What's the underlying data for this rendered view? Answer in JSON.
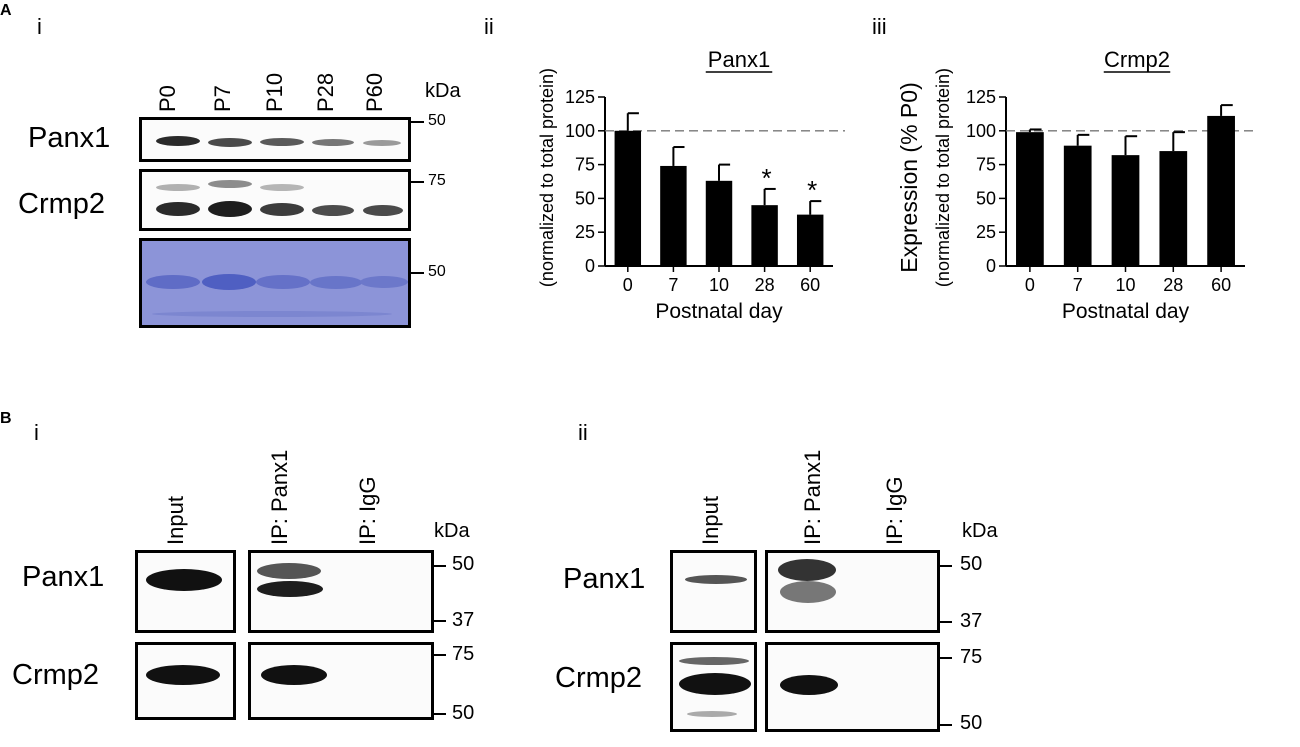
{
  "panel_a": {
    "label": "A",
    "i": {
      "label": "i",
      "lanes": [
        "P0",
        "P7",
        "P10",
        "P28",
        "P60"
      ],
      "kda": "kDa",
      "rows": [
        "Panx1",
        "Crmp2"
      ],
      "mw_markers": [
        "50",
        "75",
        "50"
      ]
    },
    "ii": {
      "label": "ii"
    },
    "iii": {
      "label": "iii"
    }
  },
  "panel_b": {
    "label": "B",
    "i": {
      "label": "i",
      "lanes": [
        "Input",
        "IP: Panx1",
        "IP: IgG"
      ],
      "kda": "kDa",
      "rows": [
        "Panx1",
        "Crmp2"
      ],
      "mw_markers": [
        "50",
        "37",
        "75",
        "50"
      ]
    },
    "ii": {
      "label": "ii",
      "lanes": [
        "Input",
        "IP: Panx1",
        "IP: IgG"
      ],
      "kda": "kDa",
      "rows": [
        "Panx1",
        "Crmp2"
      ],
      "mw_markers": [
        "50",
        "37",
        "75",
        "50"
      ]
    }
  },
  "chart_data": [
    {
      "type": "bar",
      "title": "Panx1",
      "categories": [
        "0",
        "7",
        "10",
        "28",
        "60"
      ],
      "values": [
        100,
        74,
        63,
        45,
        38
      ],
      "errors": [
        13,
        14,
        12,
        12,
        10
      ],
      "significance": [
        "",
        "",
        "",
        "*",
        "*"
      ],
      "xlabel": "Postnatal day",
      "ylabel": "(normalized to total protein)",
      "ylim": [
        0,
        125
      ],
      "yticks": [
        0,
        25,
        50,
        75,
        100,
        125
      ],
      "reference_line": 100,
      "bar_color": "#000000"
    },
    {
      "type": "bar",
      "title": "Crmp2",
      "categories": [
        "0",
        "7",
        "10",
        "28",
        "60"
      ],
      "values": [
        99,
        89,
        82,
        85,
        111
      ],
      "errors": [
        2,
        8,
        14,
        14,
        8
      ],
      "significance": [
        "",
        "",
        "",
        "",
        ""
      ],
      "xlabel": "Postnatal day",
      "ylabel": "Expression (% P0)",
      "ylabel2": "(normalized to total protein)",
      "ylim": [
        0,
        125
      ],
      "yticks": [
        0,
        25,
        50,
        75,
        100,
        125
      ],
      "reference_line": 100,
      "bar_color": "#000000"
    }
  ]
}
